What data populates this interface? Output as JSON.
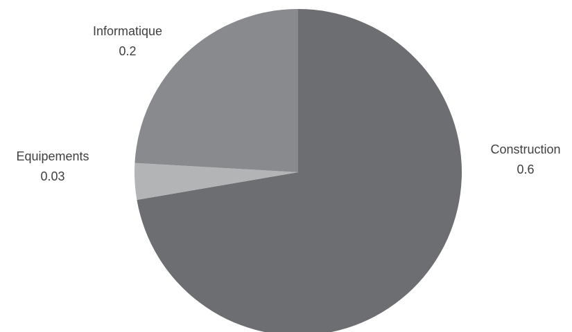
{
  "chart_data": {
    "type": "pie",
    "title": "",
    "slices": [
      {
        "label": "Construction",
        "value": 0.6,
        "value_label": "0.6",
        "color": "#6d6e71"
      },
      {
        "label": "Equipements",
        "value": 0.03,
        "value_label": "0.03",
        "color": "#b3b4b6"
      },
      {
        "label": "Informatique",
        "value": 0.2,
        "value_label": "0.2",
        "color": "#888a8d"
      }
    ],
    "start_position": "12 o'clock",
    "direction": "clockwise",
    "legend": "none",
    "labels_outside": true
  }
}
